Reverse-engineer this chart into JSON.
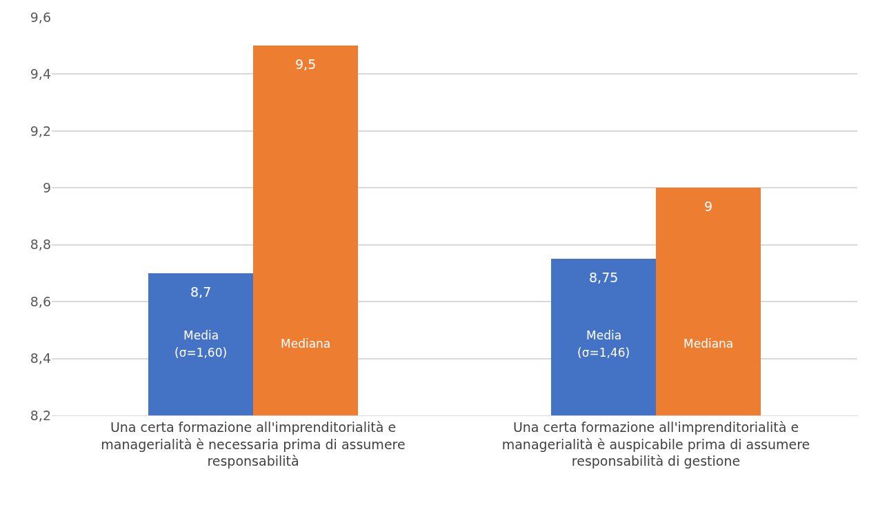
{
  "chart_data": {
    "type": "bar",
    "categories": [
      "Una certa formazione all'imprenditorialità e managerialità è necessaria prima di assumere responsabilità",
      "Una certa formazione all'imprenditorialità e managerialità è auspicabile prima di assumere responsabilità di gestione"
    ],
    "series": [
      {
        "name": "Media",
        "color": "#4472c4",
        "values": [
          8.7,
          8.75
        ],
        "value_labels": [
          "8,7",
          "8,75"
        ]
      },
      {
        "name": "Mediana",
        "color": "#ed7d31",
        "values": [
          9.5,
          9
        ],
        "value_labels": [
          "9,5",
          "9"
        ]
      }
    ],
    "annotations": [
      {
        "text": "(σ=1,60)",
        "x": "Una certa formazione all'imprenditorialità e managerialità è necessaria prima di assumere responsabilità",
        "y": 8.42
      },
      {
        "text": "(σ=1,46)",
        "x": "Una certa formazione all'imprenditorialità e managerialità è auspicabile prima di assumere responsabilità di gestione",
        "y": 8.42
      }
    ],
    "ylim": [
      8.2,
      9.6
    ],
    "yticks": [
      {
        "value": 8.2,
        "label": "8,2"
      },
      {
        "value": 8.4,
        "label": "8,4"
      },
      {
        "value": 8.6,
        "label": "8,6"
      },
      {
        "value": 8.8,
        "label": "8,8"
      },
      {
        "value": 9,
        "label": "9"
      },
      {
        "value": 9.2,
        "label": "9,2"
      },
      {
        "value": 9.4,
        "label": "9,4"
      },
      {
        "value": 9.6,
        "label": "9,6"
      }
    ],
    "grid": "y",
    "legend": false
  }
}
